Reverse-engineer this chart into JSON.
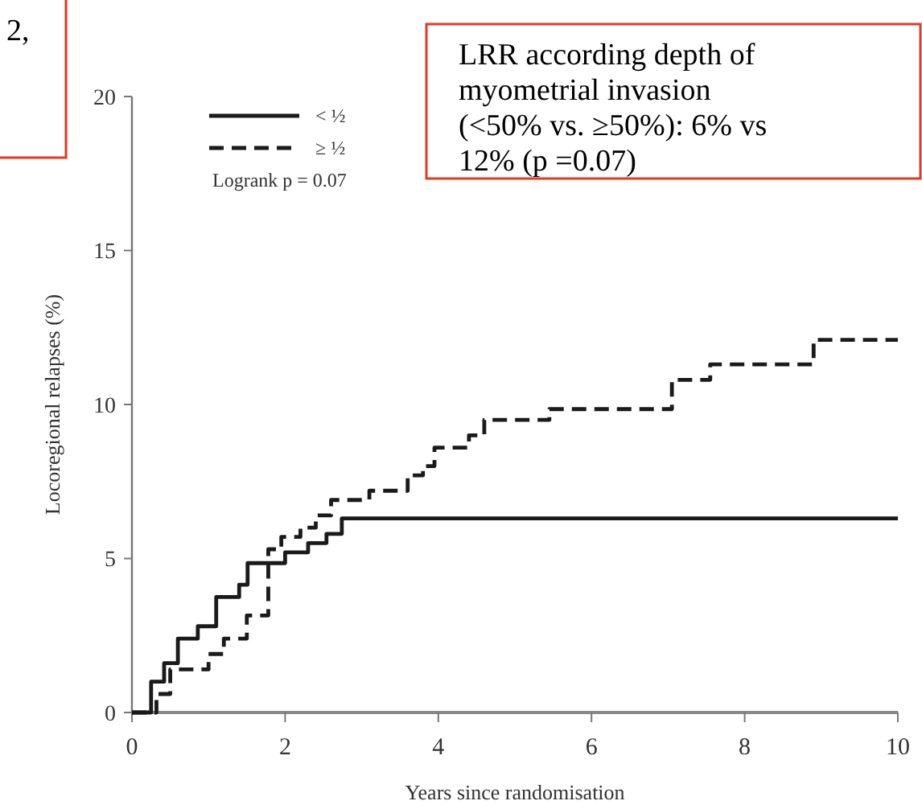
{
  "chart_data": {
    "type": "step",
    "xlabel": "Years since randomisation",
    "ylabel": "Locoregional relapses (%)",
    "xlim": [
      0,
      10
    ],
    "ylim": [
      0,
      20
    ],
    "xticks": [
      0,
      2,
      4,
      6,
      8,
      10
    ],
    "yticks": [
      0,
      5,
      10,
      15,
      20
    ],
    "legend": "top left",
    "series": [
      {
        "name": "< ½",
        "color": "#1a1a1a",
        "line_style": "solid",
        "x": [
          0,
          0.25,
          0.42,
          0.6,
          0.86,
          1.1,
          1.4,
          1.51,
          2.0,
          2.3,
          2.54,
          2.74,
          10
        ],
        "values": [
          0,
          1.0,
          1.6,
          2.4,
          2.8,
          3.75,
          4.15,
          4.85,
          5.2,
          5.5,
          5.8,
          6.3,
          6.3
        ]
      },
      {
        "name": "≥ ½",
        "color": "#1a1a1a",
        "line_style": "dashed",
        "x": [
          0,
          0.32,
          0.5,
          1.0,
          1.2,
          1.5,
          1.78,
          1.95,
          2.2,
          2.4,
          2.6,
          3.1,
          3.6,
          3.8,
          3.95,
          4.4,
          4.6,
          5.45,
          7.05,
          7.55,
          8.9,
          10
        ],
        "values": [
          0,
          0.6,
          1.4,
          1.9,
          2.4,
          3.15,
          5.3,
          5.7,
          6.0,
          6.4,
          6.9,
          7.2,
          7.7,
          8.0,
          8.6,
          9.0,
          9.5,
          9.85,
          10.8,
          11.3,
          12.1,
          12.1
        ]
      }
    ],
    "annotations": [
      "Logrank p = 0.07",
      "LRR according depth of\nmyometrial invasion\n(<50% vs. ≥50%): 6% vs\n12% (p =0.07)",
      "2,"
    ]
  }
}
